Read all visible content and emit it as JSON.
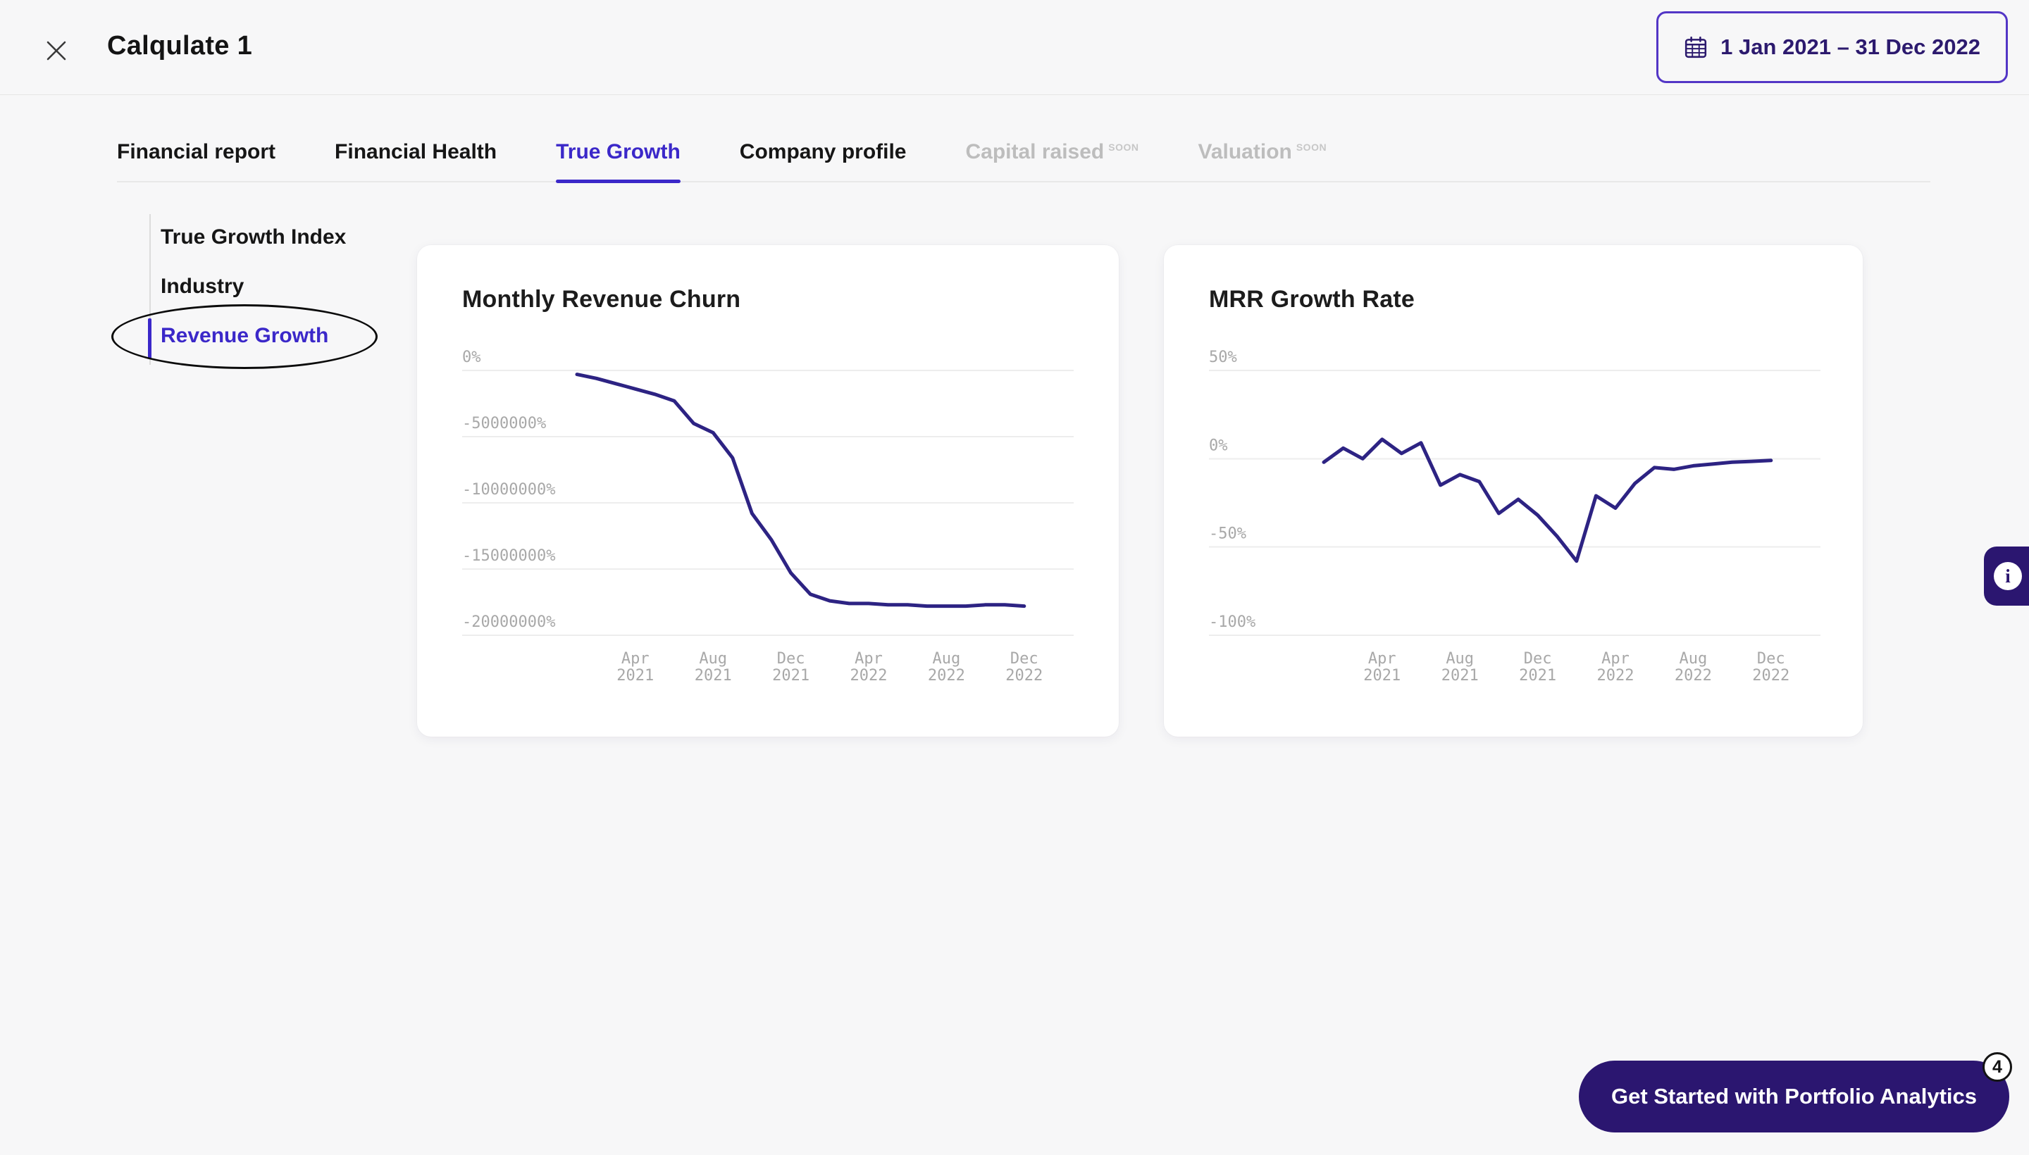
{
  "theme": {
    "accent": "#3b28c9",
    "accent_dark": "#2b1670",
    "chart_line": "#2d2383",
    "date_text": "#2c1a6e"
  },
  "header": {
    "title": "Calqulate 1",
    "date_range": "1 Jan 2021 – 31 Dec 2022"
  },
  "tabs": [
    {
      "label": "Financial report",
      "active": false,
      "disabled": false
    },
    {
      "label": "Financial Health",
      "active": false,
      "disabled": false
    },
    {
      "label": "True Growth",
      "active": true,
      "disabled": false
    },
    {
      "label": "Company profile",
      "active": false,
      "disabled": false
    },
    {
      "label": "Capital raised",
      "active": false,
      "disabled": true,
      "badge": "SOON"
    },
    {
      "label": "Valuation",
      "active": false,
      "disabled": true,
      "badge": "SOON"
    }
  ],
  "sidebar": {
    "items": [
      {
        "label": "True Growth Index",
        "active": false
      },
      {
        "label": "Industry",
        "active": false
      },
      {
        "label": "Revenue Growth",
        "active": true,
        "annotated": true
      }
    ]
  },
  "chart_data": [
    {
      "type": "line",
      "title": "Monthly Revenue Churn",
      "line_color": "#2d2383",
      "grid": true,
      "legend": false,
      "ylim": [
        -20000000,
        0
      ],
      "x": [
        "Jan 2021",
        "Feb 2021",
        "Mar 2021",
        "Apr 2021",
        "May 2021",
        "Jun 2021",
        "Jul 2021",
        "Aug 2021",
        "Sep 2021",
        "Oct 2021",
        "Nov 2021",
        "Dec 2021",
        "Jan 2022",
        "Feb 2022",
        "Mar 2022",
        "Apr 2022",
        "May 2022",
        "Jun 2022",
        "Jul 2022",
        "Aug 2022",
        "Sep 2022",
        "Oct 2022",
        "Nov 2022",
        "Dec 2022"
      ],
      "values": [
        -300000,
        -600000,
        -1000000,
        -1400000,
        -1800000,
        -2300000,
        -4000000,
        -4700000,
        -6600000,
        -10800000,
        -12800000,
        -15300000,
        -16900000,
        -17400000,
        -17600000,
        -17600000,
        -17700000,
        -17700000,
        -17800000,
        -17800000,
        -17800000,
        -17700000,
        -17700000,
        -17800000
      ],
      "yticks": {
        "values": [
          0,
          -5000000,
          -10000000,
          -15000000,
          -20000000
        ],
        "labels": [
          "0%",
          "-5000000%",
          "-10000000%",
          "-15000000%",
          "-20000000%"
        ]
      },
      "xticks": {
        "indices": [
          3,
          7,
          11,
          15,
          19,
          23
        ],
        "labels": [
          "Apr 2021",
          "Aug 2021",
          "Dec 2021",
          "Apr 2022",
          "Aug 2022",
          "Dec 2022"
        ]
      }
    },
    {
      "type": "line",
      "title": "MRR Growth Rate",
      "line_color": "#2d2383",
      "grid": true,
      "legend": false,
      "ylim": [
        -100,
        50
      ],
      "x": [
        "Jan 2021",
        "Feb 2021",
        "Mar 2021",
        "Apr 2021",
        "May 2021",
        "Jun 2021",
        "Jul 2021",
        "Aug 2021",
        "Sep 2021",
        "Oct 2021",
        "Nov 2021",
        "Dec 2021",
        "Jan 2022",
        "Feb 2022",
        "Mar 2022",
        "Apr 2022",
        "May 2022",
        "Jun 2022",
        "Jul 2022",
        "Aug 2022",
        "Sep 2022",
        "Oct 2022",
        "Nov 2022",
        "Dec 2022"
      ],
      "values": [
        -2,
        6,
        0,
        11,
        3,
        9,
        -15,
        -9,
        -13,
        -31,
        -23,
        -32,
        -44,
        -58,
        -21,
        -28,
        -14,
        -5,
        -6,
        -4,
        -3,
        -2,
        -1.5,
        -1
      ],
      "yticks": {
        "values": [
          50,
          0,
          -50,
          -100
        ],
        "labels": [
          "50%",
          "0%",
          "-50%",
          "-100%"
        ]
      },
      "xticks": {
        "indices": [
          3,
          7,
          11,
          15,
          19,
          23
        ],
        "labels": [
          "Apr 2021",
          "Aug 2021",
          "Dec 2021",
          "Apr 2022",
          "Aug 2022",
          "Dec 2022"
        ]
      }
    }
  ],
  "info_button": {
    "label": "i"
  },
  "cta": {
    "label": "Get Started with Portfolio Analytics",
    "badge": "4"
  }
}
